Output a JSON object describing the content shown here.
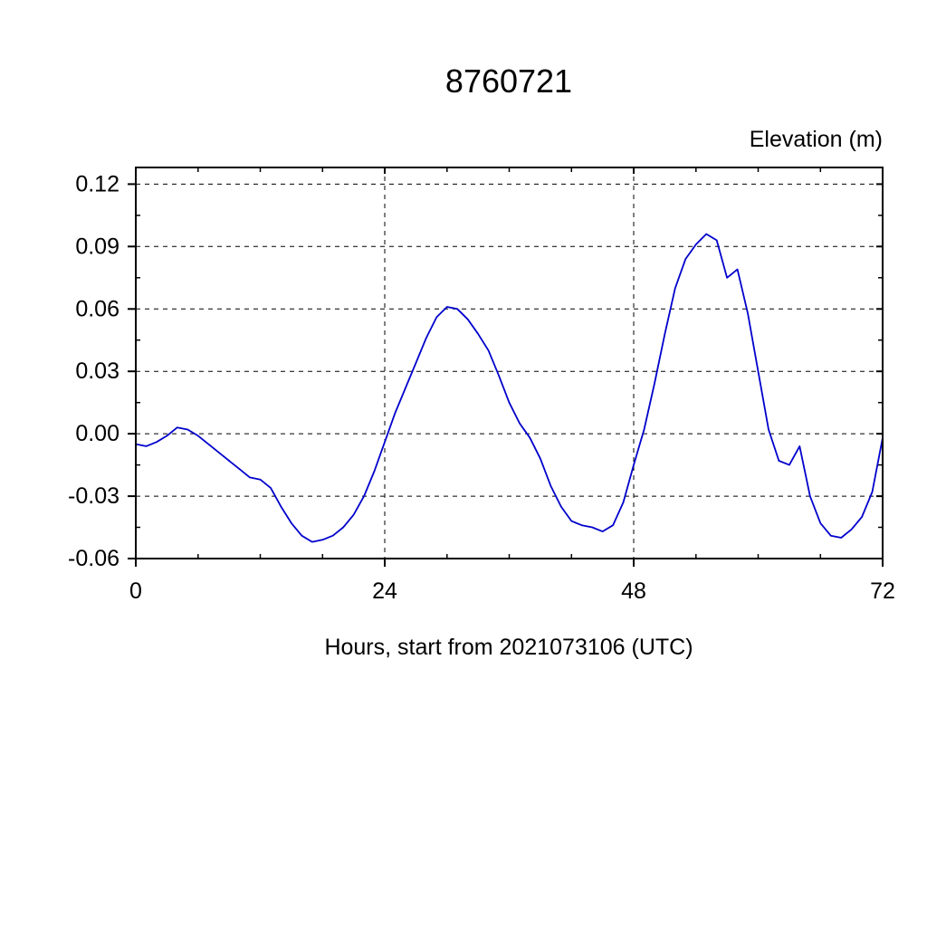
{
  "chart_data": {
    "type": "line",
    "title": "8760721",
    "ylabel": "Elevation (m)",
    "xlabel": "Hours, start from 2021073106 (UTC)",
    "xlim": [
      0,
      72
    ],
    "ylim": [
      -0.06,
      0.128
    ],
    "x_ticks": [
      0,
      24,
      48,
      72
    ],
    "x_tick_labels": [
      "0",
      "24",
      "48",
      "72"
    ],
    "y_ticks": [
      0.12,
      0.09,
      0.06,
      0.03,
      0.0,
      -0.03,
      -0.06
    ],
    "y_tick_labels": [
      "0.12",
      "0.09",
      "0.06",
      "0.03",
      "0.00",
      "-0.03",
      "-0.06"
    ],
    "x_minor_step": 6,
    "y_minor_step": 0.015,
    "grid": "dashed",
    "legend": "none",
    "line_color": "#0000cc",
    "axis_color": "#000000",
    "series": [
      {
        "name": "elevation",
        "x": [
          0,
          1,
          2,
          3,
          4,
          5,
          6,
          7,
          8,
          9,
          10,
          11,
          12,
          13,
          14,
          15,
          16,
          17,
          18,
          19,
          20,
          21,
          22,
          23,
          24,
          25,
          26,
          27,
          28,
          29,
          30,
          31,
          32,
          33,
          34,
          35,
          36,
          37,
          38,
          39,
          40,
          41,
          42,
          43,
          44,
          45,
          46,
          47,
          48,
          49,
          50,
          51,
          52,
          53,
          54,
          55,
          56,
          57,
          58,
          59,
          60,
          61,
          62,
          63,
          64,
          65,
          66,
          67,
          68,
          69,
          70,
          71,
          72
        ],
        "y": [
          -0.005,
          -0.006,
          -0.004,
          -0.001,
          0.003,
          0.002,
          -0.001,
          -0.005,
          -0.009,
          -0.013,
          -0.017,
          -0.021,
          -0.022,
          -0.026,
          -0.035,
          -0.043,
          -0.049,
          -0.052,
          -0.051,
          -0.049,
          -0.045,
          -0.039,
          -0.03,
          -0.018,
          -0.004,
          0.01,
          0.022,
          0.034,
          0.046,
          0.056,
          0.061,
          0.06,
          0.055,
          0.048,
          0.04,
          0.028,
          0.015,
          0.005,
          -0.002,
          -0.012,
          -0.025,
          -0.035,
          -0.042,
          -0.044,
          -0.045,
          -0.047,
          -0.044,
          -0.033,
          -0.015,
          0.002,
          0.024,
          0.048,
          0.07,
          0.084,
          0.091,
          0.096,
          0.093,
          0.075,
          0.079,
          0.058,
          0.03,
          0.002,
          -0.013,
          -0.015,
          -0.006,
          -0.03,
          -0.043,
          -0.049,
          -0.05,
          -0.046,
          -0.04,
          -0.028,
          -0.002
        ]
      }
    ]
  }
}
